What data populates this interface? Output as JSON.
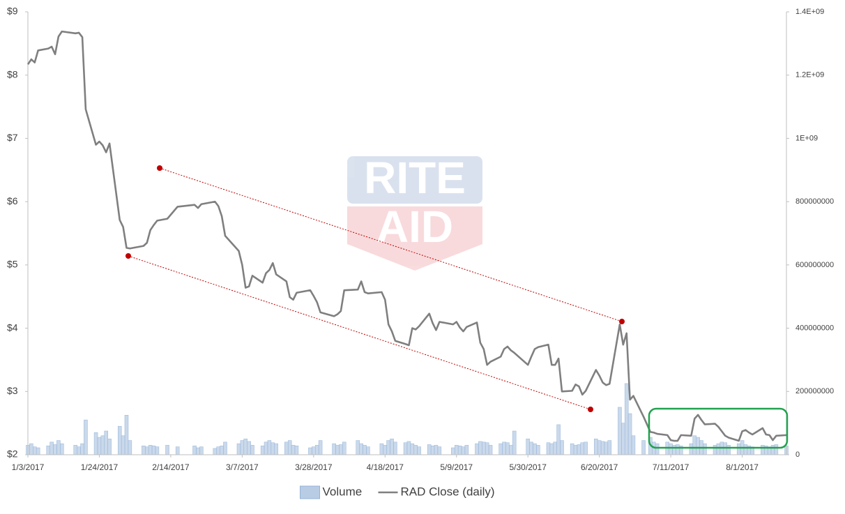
{
  "chart_data": {
    "type": "combo",
    "watermark": [
      "RITE",
      "AID"
    ],
    "x": [
      "1/3/2017",
      "1/4/2017",
      "1/5/2017",
      "1/6/2017",
      "1/9/2017",
      "1/10/2017",
      "1/11/2017",
      "1/12/2017",
      "1/13/2017",
      "1/17/2017",
      "1/18/2017",
      "1/19/2017",
      "1/20/2017",
      "1/23/2017",
      "1/24/2017",
      "1/25/2017",
      "1/26/2017",
      "1/27/2017",
      "1/30/2017",
      "1/31/2017",
      "2/1/2017",
      "2/2/2017",
      "2/6/2017",
      "2/7/2017",
      "2/8/2017",
      "2/9/2017",
      "2/10/2017",
      "2/13/2017",
      "2/16/2017",
      "2/21/2017",
      "2/22/2017",
      "2/23/2017",
      "2/27/2017",
      "2/28/2017",
      "3/1/2017",
      "3/2/2017",
      "3/6/2017",
      "3/7/2017",
      "3/8/2017",
      "3/9/2017",
      "3/10/2017",
      "3/13/2017",
      "3/14/2017",
      "3/15/2017",
      "3/16/2017",
      "3/17/2017",
      "3/20/2017",
      "3/21/2017",
      "3/22/2017",
      "3/23/2017",
      "3/27/2017",
      "3/28/2017",
      "3/29/2017",
      "3/30/2017",
      "4/3/2017",
      "4/4/2017",
      "4/5/2017",
      "4/6/2017",
      "4/10/2017",
      "4/11/2017",
      "4/12/2017",
      "4/13/2017",
      "4/17/2017",
      "4/18/2017",
      "4/19/2017",
      "4/20/2017",
      "4/21/2017",
      "4/24/2017",
      "4/25/2017",
      "4/26/2017",
      "4/27/2017",
      "4/28/2017",
      "5/1/2017",
      "5/2/2017",
      "5/3/2017",
      "5/4/2017",
      "5/8/2017",
      "5/9/2017",
      "5/10/2017",
      "5/11/2017",
      "5/12/2017",
      "5/15/2017",
      "5/16/2017",
      "5/17/2017",
      "5/18/2017",
      "5/19/2017",
      "5/22/2017",
      "5/23/2017",
      "5/24/2017",
      "5/25/2017",
      "5/26/2017",
      "5/30/2017",
      "5/31/2017",
      "6/1/2017",
      "6/2/2017",
      "6/5/2017",
      "6/6/2017",
      "6/7/2017",
      "6/8/2017",
      "6/9/2017",
      "6/12/2017",
      "6/13/2017",
      "6/14/2017",
      "6/15/2017",
      "6/16/2017",
      "6/19/2017",
      "6/20/2017",
      "6/21/2017",
      "6/22/2017",
      "6/23/2017",
      "6/26/2017",
      "6/27/2017",
      "6/28/2017",
      "6/29/2017",
      "6/30/2017",
      "7/3/2017",
      "7/5/2017",
      "7/6/2017",
      "7/7/2017",
      "7/10/2017",
      "7/11/2017",
      "7/12/2017",
      "7/13/2017",
      "7/14/2017",
      "7/17/2017",
      "7/18/2017",
      "7/19/2017",
      "7/20/2017",
      "7/21/2017",
      "7/24/2017",
      "7/25/2017",
      "7/26/2017",
      "7/27/2017",
      "7/28/2017",
      "7/31/2017",
      "8/1/2017",
      "8/2/2017",
      "8/3/2017",
      "8/4/2017",
      "8/7/2017",
      "8/8/2017",
      "8/9/2017",
      "8/10/2017",
      "8/11/2017",
      "8/14/2017"
    ],
    "xlim": [
      "1/3/2017",
      "8/14/2017"
    ],
    "xticks": [
      "1/3/2017",
      "1/24/2017",
      "2/14/2017",
      "3/7/2017",
      "3/28/2017",
      "4/18/2017",
      "5/9/2017",
      "5/30/2017",
      "6/20/2017",
      "7/11/2017",
      "8/1/2017"
    ],
    "ylim": [
      2,
      9
    ],
    "yticks": [
      {
        "value": 2,
        "label": "$2"
      },
      {
        "value": 3,
        "label": "$3"
      },
      {
        "value": 4,
        "label": "$4"
      },
      {
        "value": 5,
        "label": "$5"
      },
      {
        "value": 6,
        "label": "$6"
      },
      {
        "value": 7,
        "label": "$7"
      },
      {
        "value": 8,
        "label": "$8"
      },
      {
        "value": 9,
        "label": "$9"
      }
    ],
    "y2lim": [
      0,
      1400000000
    ],
    "y2ticks": [
      0,
      200000000,
      400000000,
      600000000,
      800000000,
      {
        "value": 1000000000,
        "label": "1E+09"
      },
      {
        "value": 1200000000,
        "label": "1.2E+09"
      },
      {
        "value": 1400000000,
        "label": "1.4E+09"
      }
    ],
    "legend": "bottom",
    "series": [
      {
        "name": "Volume",
        "type": "bar",
        "axis": "y2",
        "color": "#b8cce4",
        "values": [
          30000000.0,
          35000000.0,
          25000000.0,
          22000000.0,
          28000000.0,
          40000000.0,
          32000000.0,
          45000000.0,
          35000000.0,
          30000000.0,
          25000000.0,
          35000000.0,
          110000000.0,
          70000000.0,
          55000000.0,
          60000000.0,
          75000000.0,
          50000000.0,
          90000000.0,
          60000000.0,
          125000000.0,
          45000000.0,
          28000000.0,
          25000000.0,
          30000000.0,
          28000000.0,
          25000000.0,
          30000000.0,
          25000000.0,
          28000000.0,
          22000000.0,
          25000000.0,
          20000000.0,
          25000000.0,
          28000000.0,
          40000000.0,
          35000000.0,
          45000000.0,
          50000000.0,
          42000000.0,
          30000000.0,
          28000000.0,
          40000000.0,
          45000000.0,
          38000000.0,
          35000000.0,
          40000000.0,
          45000000.0,
          30000000.0,
          28000000.0,
          22000000.0,
          25000000.0,
          30000000.0,
          45000000.0,
          35000000.0,
          30000000.0,
          32000000.0,
          40000000.0,
          45000000.0,
          35000000.0,
          30000000.0,
          25000000.0,
          35000000.0,
          30000000.0,
          45000000.0,
          50000000.0,
          40000000.0,
          38000000.0,
          42000000.0,
          35000000.0,
          30000000.0,
          25000000.0,
          32000000.0,
          28000000.0,
          30000000.0,
          25000000.0,
          22000000.0,
          30000000.0,
          28000000.0,
          25000000.0,
          30000000.0,
          35000000.0,
          42000000.0,
          40000000.0,
          38000000.0,
          30000000.0,
          35000000.0,
          40000000.0,
          38000000.0,
          30000000.0,
          75000000.0,
          50000000.0,
          40000000.0,
          35000000.0,
          30000000.0,
          38000000.0,
          35000000.0,
          40000000.0,
          95000000.0,
          45000000.0,
          35000000.0,
          30000000.0,
          32000000.0,
          38000000.0,
          40000000.0,
          50000000.0,
          45000000.0,
          42000000.0,
          40000000.0,
          45000000.0,
          150000000.0,
          100000000.0,
          225000000.0,
          130000000.0,
          60000000.0,
          45000000.0,
          55000000.0,
          40000000.0,
          35000000.0,
          40000000.0,
          35000000.0,
          30000000.0,
          32000000.0,
          28000000.0,
          35000000.0,
          60000000.0,
          55000000.0,
          45000000.0,
          35000000.0,
          30000000.0,
          35000000.0,
          40000000.0,
          38000000.0,
          30000000.0,
          35000000.0,
          45000000.0,
          32000000.0,
          28000000.0,
          25000000.0,
          30000000.0,
          28000000.0,
          25000000.0,
          30000000.0,
          32000000.0,
          28000000.0
        ]
      },
      {
        "name": "RAD Close (daily)",
        "type": "line",
        "axis": "y",
        "color": "#7f7f7f",
        "values": [
          8.17,
          8.25,
          8.2,
          8.39,
          8.42,
          8.45,
          8.33,
          8.61,
          8.69,
          8.66,
          8.67,
          8.6,
          7.46,
          6.9,
          6.95,
          6.89,
          6.78,
          6.92,
          5.71,
          5.6,
          5.27,
          5.26,
          5.3,
          5.35,
          5.55,
          5.63,
          5.7,
          5.73,
          5.92,
          5.95,
          5.9,
          5.96,
          6.0,
          5.93,
          5.77,
          5.46,
          5.22,
          5.0,
          4.64,
          4.66,
          4.83,
          4.72,
          4.87,
          4.92,
          5.03,
          4.85,
          4.74,
          4.49,
          4.45,
          4.56,
          4.6,
          4.51,
          4.41,
          4.25,
          4.19,
          4.22,
          4.27,
          4.6,
          4.61,
          4.74,
          4.57,
          4.55,
          4.57,
          4.45,
          4.06,
          3.95,
          3.8,
          3.75,
          3.73,
          4.0,
          3.98,
          4.03,
          4.23,
          4.08,
          3.97,
          4.1,
          4.06,
          4.1,
          4.01,
          3.95,
          4.02,
          4.09,
          3.77,
          3.67,
          3.42,
          3.47,
          3.55,
          3.67,
          3.71,
          3.65,
          3.61,
          3.42,
          3.55,
          3.67,
          3.7,
          3.74,
          3.42,
          3.42,
          3.52,
          3.0,
          3.01,
          3.11,
          3.08,
          2.95,
          3.01,
          3.34,
          3.25,
          3.14,
          3.1,
          3.12,
          4.06,
          3.74,
          3.92,
          2.87,
          2.93,
          2.6,
          2.36,
          2.35,
          2.33,
          2.31,
          2.23,
          2.22,
          2.22,
          2.31,
          2.3,
          2.57,
          2.63,
          2.55,
          2.48,
          2.49,
          2.44,
          2.37,
          2.3,
          2.27,
          2.22,
          2.37,
          2.39,
          2.35,
          2.32,
          2.42,
          2.32,
          2.31,
          2.23,
          2.3,
          2.31
        ]
      }
    ]
  }
}
